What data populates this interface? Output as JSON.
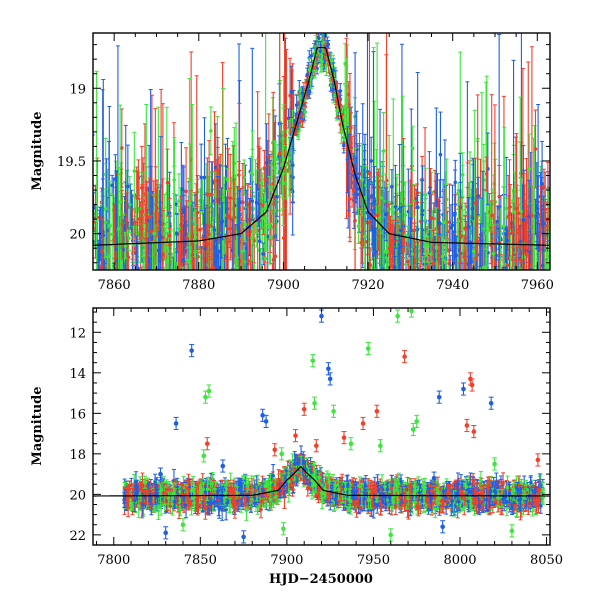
{
  "chart_data": [
    {
      "type": "scatter",
      "panel": "top",
      "xlabel": "",
      "ylabel": "Magnitude",
      "xlim": [
        7855,
        7963
      ],
      "ylim": [
        20.25,
        18.62
      ],
      "y_inverted": true,
      "x_ticks": [
        7860,
        7880,
        7900,
        7920,
        7940,
        7960
      ],
      "y_ticks": [
        19,
        19.5,
        20
      ],
      "error_bars": true,
      "series_colors": [
        "#1e5fe6",
        "#3ce63c",
        "#f0412d"
      ],
      "model_line_color": "#000000",
      "model_curve": {
        "x": [
          7855,
          7880,
          7890,
          7896,
          7900,
          7903,
          7906,
          7908,
          7910,
          7912,
          7914,
          7917,
          7920,
          7925,
          7935,
          7963
        ],
        "y": [
          20.08,
          20.05,
          20.0,
          19.85,
          19.55,
          19.25,
          18.95,
          18.72,
          18.72,
          18.95,
          19.25,
          19.6,
          19.85,
          20.0,
          20.06,
          20.08
        ]
      },
      "peak_time": 7908.5,
      "baseline_mag": 20.05,
      "peak_mag": 18.62
    },
    {
      "type": "scatter",
      "panel": "bottom",
      "xlabel": "HJD−2450000",
      "ylabel": "Magnitude",
      "xlim": [
        7788,
        8052
      ],
      "ylim": [
        22.5,
        10.8
      ],
      "y_inverted": true,
      "x_ticks": [
        7800,
        7850,
        7900,
        7950,
        8000,
        8050
      ],
      "y_ticks": [
        12,
        14,
        16,
        18,
        20,
        22
      ],
      "data_start": 7806,
      "data_end": 8048,
      "error_bars": true,
      "series_colors": [
        "#1e5fe6",
        "#3ce63c",
        "#f0412d"
      ],
      "model_line_color": "#000000",
      "model_curve": {
        "x": [
          7788,
          7880,
          7895,
          7900,
          7905,
          7908,
          7911,
          7916,
          7921,
          7935,
          8052
        ],
        "y": [
          20.08,
          20.05,
          19.8,
          19.3,
          18.9,
          18.62,
          18.9,
          19.3,
          19.8,
          20.05,
          20.08
        ]
      },
      "outliers": [
        {
          "x": 7813,
          "y": 19.6,
          "c": 0
        },
        {
          "x": 7818,
          "y": 19.4,
          "c": 1
        },
        {
          "x": 7827,
          "y": 19.0,
          "c": 0
        },
        {
          "x": 7836,
          "y": 16.5,
          "c": 0
        },
        {
          "x": 7845,
          "y": 12.9,
          "c": 0
        },
        {
          "x": 7853,
          "y": 15.2,
          "c": 1
        },
        {
          "x": 7854,
          "y": 17.5,
          "c": 2
        },
        {
          "x": 7855,
          "y": 14.9,
          "c": 1
        },
        {
          "x": 7852,
          "y": 18.1,
          "c": 1
        },
        {
          "x": 7863,
          "y": 18.6,
          "c": 0
        },
        {
          "x": 7886,
          "y": 16.1,
          "c": 0
        },
        {
          "x": 7888,
          "y": 16.4,
          "c": 0
        },
        {
          "x": 7893,
          "y": 17.8,
          "c": 2
        },
        {
          "x": 7897,
          "y": 18.0,
          "c": 1
        },
        {
          "x": 7905,
          "y": 17.1,
          "c": 2
        },
        {
          "x": 7910,
          "y": 15.8,
          "c": 2
        },
        {
          "x": 7915,
          "y": 13.4,
          "c": 1
        },
        {
          "x": 7916,
          "y": 15.5,
          "c": 1
        },
        {
          "x": 7917,
          "y": 17.6,
          "c": 2
        },
        {
          "x": 7920,
          "y": 11.2,
          "c": 0
        },
        {
          "x": 7924,
          "y": 13.8,
          "c": 0
        },
        {
          "x": 7925,
          "y": 14.3,
          "c": 0
        },
        {
          "x": 7927,
          "y": 15.9,
          "c": 1
        },
        {
          "x": 7933,
          "y": 17.2,
          "c": 2
        },
        {
          "x": 7937,
          "y": 17.5,
          "c": 1
        },
        {
          "x": 7944,
          "y": 16.5,
          "c": 2
        },
        {
          "x": 7947,
          "y": 12.8,
          "c": 1
        },
        {
          "x": 7952,
          "y": 15.9,
          "c": 2
        },
        {
          "x": 7954,
          "y": 17.6,
          "c": 1
        },
        {
          "x": 7964,
          "y": 11.2,
          "c": 1
        },
        {
          "x": 7968,
          "y": 13.2,
          "c": 2
        },
        {
          "x": 7972,
          "y": 10.95,
          "c": 1
        },
        {
          "x": 7973,
          "y": 16.8,
          "c": 1
        },
        {
          "x": 7975,
          "y": 16.4,
          "c": 1
        },
        {
          "x": 7985,
          "y": 19.2,
          "c": 0
        },
        {
          "x": 7988,
          "y": 15.2,
          "c": 0
        },
        {
          "x": 8002,
          "y": 14.8,
          "c": 0
        },
        {
          "x": 8004,
          "y": 16.6,
          "c": 2
        },
        {
          "x": 8006,
          "y": 14.3,
          "c": 2
        },
        {
          "x": 8007,
          "y": 14.6,
          "c": 2
        },
        {
          "x": 8008,
          "y": 16.9,
          "c": 2
        },
        {
          "x": 8018,
          "y": 15.5,
          "c": 0
        },
        {
          "x": 8020,
          "y": 18.5,
          "c": 1
        },
        {
          "x": 8045,
          "y": 18.3,
          "c": 2
        },
        {
          "x": 7830,
          "y": 21.9,
          "c": 0
        },
        {
          "x": 7840,
          "y": 21.5,
          "c": 1
        },
        {
          "x": 7875,
          "y": 22.1,
          "c": 0
        },
        {
          "x": 7898,
          "y": 21.7,
          "c": 1
        },
        {
          "x": 7960,
          "y": 22.0,
          "c": 1
        },
        {
          "x": 7990,
          "y": 21.6,
          "c": 0
        },
        {
          "x": 8030,
          "y": 21.8,
          "c": 1
        }
      ]
    }
  ]
}
